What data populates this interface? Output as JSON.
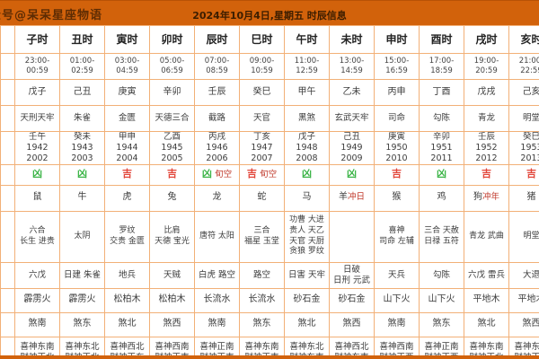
{
  "banner": {
    "watermark": "公众号@呆呆星座物语",
    "title": "2024年10月4日,星期五 时辰信息"
  },
  "colors": {
    "banner_orange": "#d2620b",
    "border_orange": "#f2b077",
    "luck_bad_green": "#3db549",
    "luck_good_red": "#e2463a",
    "annotation_red": "#c0392b",
    "text": "#3c3c3c"
  },
  "table": {
    "columns": [
      {
        "hour": "子时",
        "time": "23:00-00:59",
        "ganzhi": "戊子",
        "duty_star": "天刑天牢",
        "year_ganzhi": "壬午",
        "years": "1942 2002",
        "luck": "凶",
        "luck_type": "bad",
        "luck_note": "",
        "zodiac": "鼠",
        "zodiac_note": "",
        "auspicious_stars": [
          "六合",
          "长生 进贵"
        ],
        "inauspicious_stars": [
          "六戊"
        ],
        "nayin": "霹雳火",
        "sha_direction": "煞南",
        "xishen": "喜神东南",
        "caishen": "财神正北"
      },
      {
        "hour": "丑时",
        "time": "01:00-02:59",
        "ganzhi": "己丑",
        "duty_star": "朱雀",
        "year_ganzhi": "癸未",
        "years": "1943 2003",
        "luck": "凶",
        "luck_type": "bad",
        "luck_note": "",
        "zodiac": "牛",
        "zodiac_note": "",
        "auspicious_stars": [
          "太阴"
        ],
        "inauspicious_stars": [
          "日建 朱雀"
        ],
        "nayin": "霹雳火",
        "sha_direction": "煞东",
        "xishen": "喜神东北",
        "caishen": "财神正北"
      },
      {
        "hour": "寅时",
        "time": "03:00-04:59",
        "ganzhi": "庚寅",
        "duty_star": "金匮",
        "year_ganzhi": "甲申",
        "years": "1944 2004",
        "luck": "吉",
        "luck_type": "good",
        "luck_note": "",
        "zodiac": "虎",
        "zodiac_note": "",
        "auspicious_stars": [
          "罗纹",
          "交贵 金匮"
        ],
        "inauspicious_stars": [
          "地兵"
        ],
        "nayin": "松柏木",
        "sha_direction": "煞北",
        "xishen": "喜神西北",
        "caishen": "财神正东"
      },
      {
        "hour": "卯时",
        "time": "05:00-06:59",
        "ganzhi": "辛卯",
        "duty_star": "天德三合",
        "year_ganzhi": "乙酉",
        "years": "1945 2005",
        "luck": "吉",
        "luck_type": "good",
        "luck_note": "",
        "zodiac": "兔",
        "zodiac_note": "",
        "auspicious_stars": [
          "比肩",
          "天德 宝光"
        ],
        "inauspicious_stars": [
          "天贼"
        ],
        "nayin": "松柏木",
        "sha_direction": "煞西",
        "xishen": "喜神西南",
        "caishen": "财神正南"
      },
      {
        "hour": "辰时",
        "time": "07:00-08:59",
        "ganzhi": "壬辰",
        "duty_star": "截路",
        "year_ganzhi": "丙戌",
        "years": "1946 2006",
        "luck": "凶",
        "luck_type": "bad",
        "luck_note": "旬空",
        "zodiac": "龙",
        "zodiac_note": "",
        "auspicious_stars": [
          "唐符 太阳"
        ],
        "inauspicious_stars": [
          "白虎 路空"
        ],
        "nayin": "长流水",
        "sha_direction": "煞南",
        "xishen": "喜神正南",
        "caishen": "财神正南"
      },
      {
        "hour": "巳时",
        "time": "09:00-10:59",
        "ganzhi": "癸巳",
        "duty_star": "天官",
        "year_ganzhi": "丁亥",
        "years": "1947 2007",
        "luck": "吉",
        "luck_type": "good",
        "luck_note": "旬空",
        "zodiac": "蛇",
        "zodiac_note": "",
        "auspicious_stars": [
          "三合",
          "福星 玉堂"
        ],
        "inauspicious_stars": [
          "路空"
        ],
        "nayin": "长流水",
        "sha_direction": "煞东",
        "xishen": "喜神东南",
        "caishen": "财神正南"
      },
      {
        "hour": "午时",
        "time": "11:00-12:59",
        "ganzhi": "甲午",
        "duty_star": "黑煞",
        "year_ganzhi": "戊子",
        "years": "1948 2008",
        "luck": "凶",
        "luck_type": "bad",
        "luck_note": "",
        "zodiac": "马",
        "zodiac_note": "",
        "auspicious_stars": [
          "功曹 大进",
          "贵人 天乙",
          "天官 天厨",
          "贪狼 罗纹"
        ],
        "inauspicious_stars": [
          "日害 天牢"
        ],
        "nayin": "砂石金",
        "sha_direction": "煞北",
        "xishen": "喜神东北",
        "caishen": "财神东南"
      },
      {
        "hour": "未时",
        "time": "13:00-14:59",
        "ganzhi": "乙未",
        "duty_star": "玄武天牢",
        "year_ganzhi": "己丑",
        "years": "1949 2009",
        "luck": "凶",
        "luck_type": "bad",
        "luck_note": "",
        "zodiac": "羊",
        "zodiac_note": "冲日",
        "auspicious_stars": [],
        "inauspicious_stars": [
          "日破",
          "日刑 元武"
        ],
        "nayin": "砂石金",
        "sha_direction": "煞西",
        "xishen": "喜神西北",
        "caishen": "财神东南"
      },
      {
        "hour": "申时",
        "time": "15:00-16:59",
        "ganzhi": "丙申",
        "duty_star": "司命",
        "year_ganzhi": "庚寅",
        "years": "1950 2010",
        "luck": "吉",
        "luck_type": "good",
        "luck_note": "",
        "zodiac": "猴",
        "zodiac_note": "",
        "auspicious_stars": [
          "喜神",
          "司命 左辅"
        ],
        "inauspicious_stars": [
          "天兵"
        ],
        "nayin": "山下火",
        "sha_direction": "煞南",
        "xishen": "喜神西南",
        "caishen": "财神正西"
      },
      {
        "hour": "酉时",
        "time": "17:00-18:59",
        "ganzhi": "丁酉",
        "duty_star": "勾陈",
        "year_ganzhi": "辛卯",
        "years": "1951 2011",
        "luck": "凶",
        "luck_type": "bad",
        "luck_note": "",
        "zodiac": "鸡",
        "zodiac_note": "",
        "auspicious_stars": [
          "三合 天赦",
          "日禄 五符"
        ],
        "inauspicious_stars": [
          "勾陈"
        ],
        "nayin": "山下火",
        "sha_direction": "煞东",
        "xishen": "喜神正南",
        "caishen": "财神正西"
      },
      {
        "hour": "戌时",
        "time": "19:00-20:59",
        "ganzhi": "戊戌",
        "duty_star": "青龙",
        "year_ganzhi": "壬辰",
        "years": "1952 2012",
        "luck": "吉",
        "luck_type": "good",
        "luck_note": "",
        "zodiac": "狗",
        "zodiac_note": "冲年",
        "auspicious_stars": [
          "青龙 武曲"
        ],
        "inauspicious_stars": [
          "六戊 雷兵"
        ],
        "nayin": "平地木",
        "sha_direction": "煞北",
        "xishen": "喜神东南",
        "caishen": "财神正北"
      },
      {
        "hour": "亥时",
        "time": "21:00-22:59",
        "ganzhi": "己亥",
        "duty_star": "明堂",
        "year_ganzhi": "癸巳",
        "years": "1953 2013",
        "luck": "吉",
        "luck_type": "good",
        "luck_note": "",
        "zodiac": "猪",
        "zodiac_note": "",
        "auspicious_stars": [
          "明堂"
        ],
        "inauspicious_stars": [
          "大退"
        ],
        "nayin": "平地木",
        "sha_direction": "煞西",
        "xishen": "喜神东北",
        "caishen": "财神正北"
      }
    ]
  }
}
